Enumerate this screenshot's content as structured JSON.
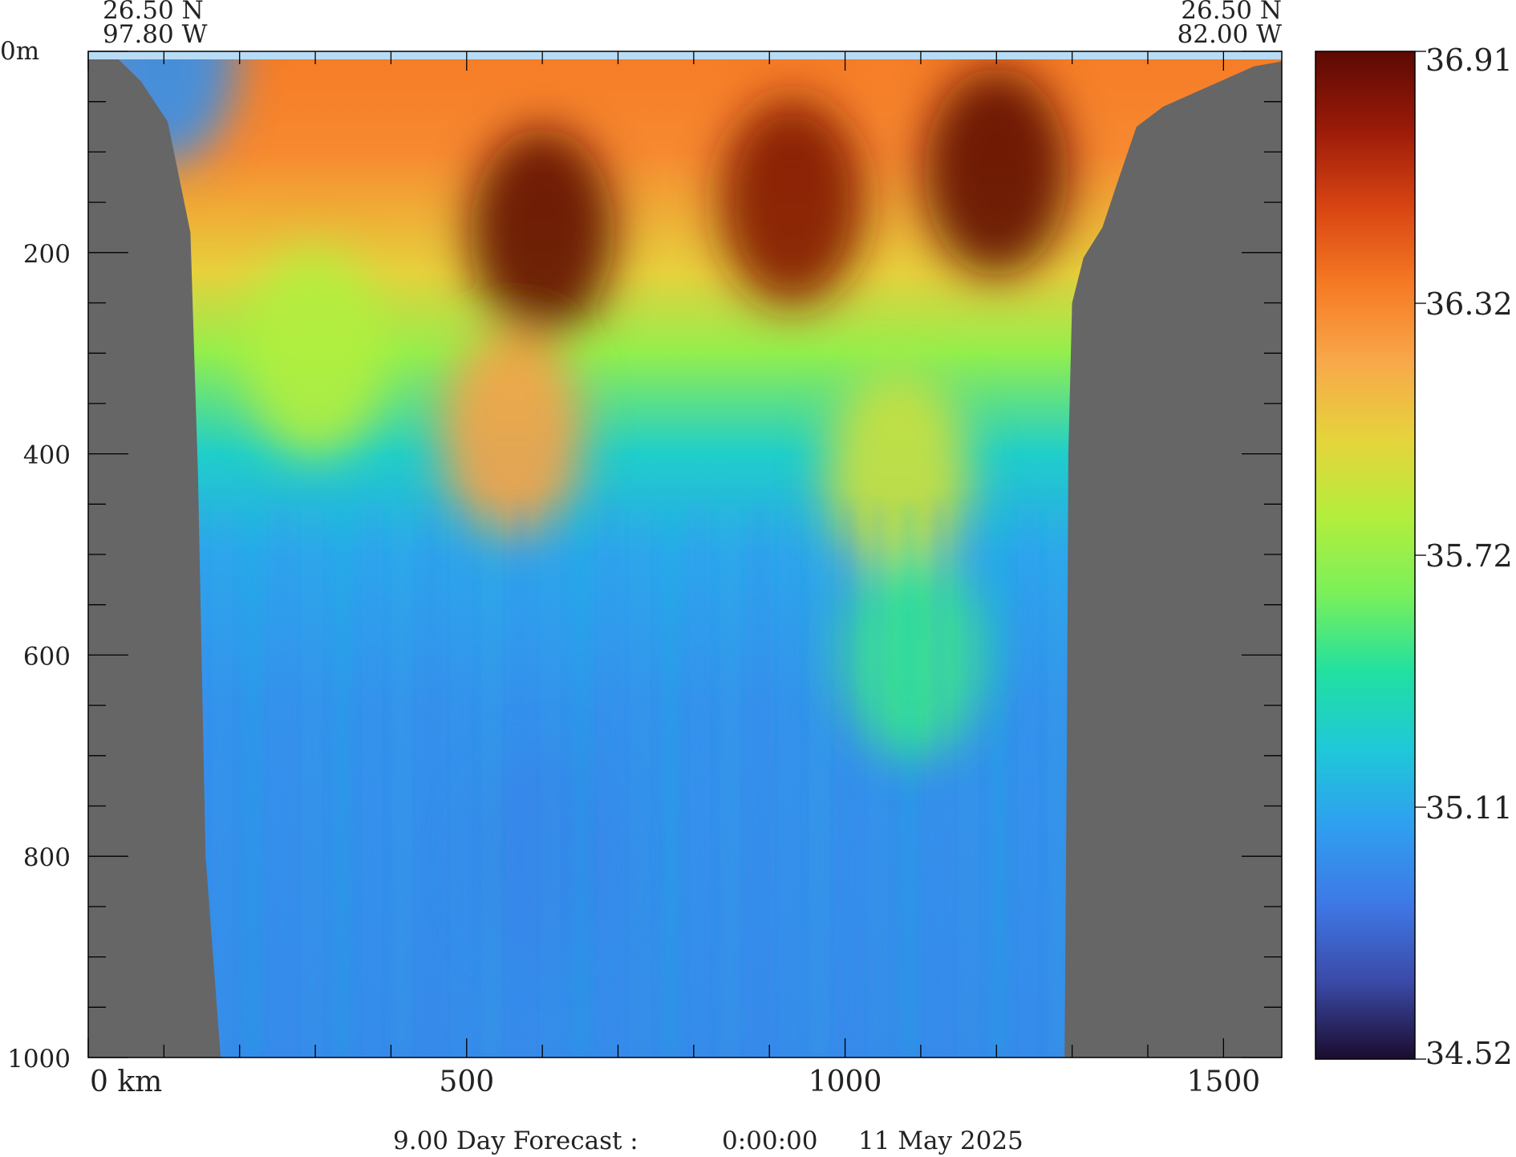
{
  "chart_data": {
    "type": "heatmap",
    "title": "",
    "xlabel": "",
    "ylabel": "",
    "corner_labels": {
      "left_lat": "26.50 N",
      "left_lon": "97.80 W",
      "right_lat": "26.50 N",
      "right_lon": "82.00 W"
    },
    "x_axis": {
      "unit": "km",
      "xlim": [
        0,
        1577
      ],
      "major_ticks": [
        0,
        500,
        1000,
        1500
      ],
      "tick_labels": [
        "0 km",
        "500",
        "1000",
        "1500"
      ],
      "minor_step": 100
    },
    "y_axis": {
      "unit": "m",
      "ylim": [
        0,
        1000
      ],
      "inverted": true,
      "major_ticks": [
        0,
        200,
        400,
        600,
        800,
        1000
      ],
      "tick_labels": [
        "0m",
        "200",
        "400",
        "600",
        "800",
        "1000"
      ],
      "minor_step": 50
    },
    "colorbar": {
      "min": 34.52,
      "max": 36.91,
      "tick_labels": [
        "36.91",
        "36.32",
        "35.72",
        "35.11",
        "34.52"
      ]
    },
    "bathymetry_profile_km_m": [
      [
        0,
        8
      ],
      [
        40,
        8
      ],
      [
        70,
        30
      ],
      [
        105,
        70
      ],
      [
        135,
        180
      ],
      [
        145,
        420
      ],
      [
        155,
        800
      ],
      [
        175,
        1000
      ],
      [
        1290,
        1000
      ],
      [
        1293,
        700
      ],
      [
        1295,
        400
      ],
      [
        1300,
        250
      ],
      [
        1315,
        205
      ],
      [
        1340,
        175
      ],
      [
        1360,
        130
      ],
      [
        1385,
        75
      ],
      [
        1420,
        55
      ],
      [
        1480,
        35
      ],
      [
        1540,
        15
      ],
      [
        1577,
        10
      ]
    ],
    "salinity_features": [
      {
        "x_km": 600,
        "depth_m": 180,
        "value": 36.9
      },
      {
        "x_km": 930,
        "depth_m": 150,
        "value": 36.8
      },
      {
        "x_km": 1200,
        "depth_m": 120,
        "value": 36.9
      },
      {
        "x_km": 560,
        "depth_m": 380,
        "value": 36.2
      },
      {
        "x_km": 1070,
        "depth_m": 420,
        "value": 35.9
      },
      {
        "x_km": 1090,
        "depth_m": 600,
        "value": 35.5
      },
      {
        "x_km": 300,
        "depth_m": 300,
        "value": 35.8
      },
      {
        "x_km": 600,
        "depth_m": 800,
        "value": 34.95
      },
      {
        "x_km": 100,
        "depth_m": 8,
        "value": 35.0
      }
    ],
    "colors": {
      "land": "#666666",
      "surface_skin": "#b8dcf5",
      "colormap": [
        "#1b0c2e",
        "#3b4aa8",
        "#3e78e6",
        "#2f9ff0",
        "#1fc8d8",
        "#21e0a0",
        "#7af05a",
        "#b4ee3c",
        "#e6d33c",
        "#f8a84a",
        "#f67a24",
        "#d84412",
        "#9a1a08",
        "#5c0a04"
      ]
    },
    "footer": {
      "forecast": "9.00 Day Forecast :",
      "time": "0:00:00",
      "date": "11 May 2025"
    }
  }
}
